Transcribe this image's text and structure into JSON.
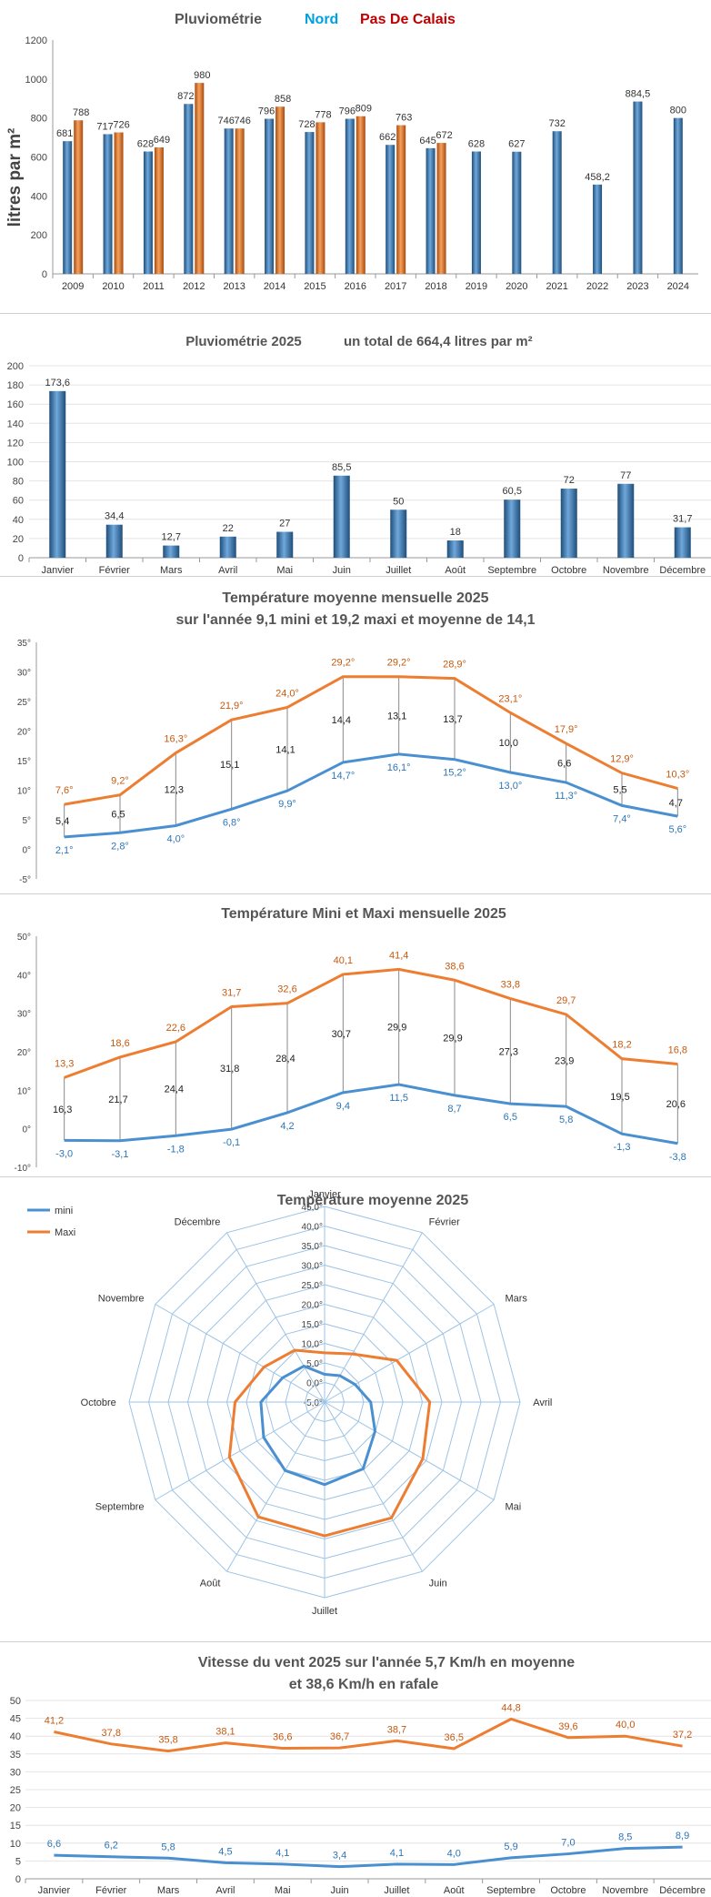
{
  "chart_data": [
    {
      "type": "bar",
      "title_parts": [
        "Pluviométrie",
        "Nord",
        "Pas De Calais"
      ],
      "ylabel": "litres  par  m²",
      "ylim": [
        0,
        1200
      ],
      "yticks": [
        "0",
        "200",
        "400",
        "600",
        "800",
        "1000",
        "1200"
      ],
      "categories": [
        "2009",
        "2010",
        "2011",
        "2012",
        "2013",
        "2014",
        "2015",
        "2016",
        "2017",
        "2018",
        "2019",
        "2020",
        "2021",
        "2022",
        "2023",
        "2024"
      ],
      "series": [
        {
          "name": "Nord",
          "color": "#3b78b8",
          "values": [
            681,
            717,
            628,
            872,
            746,
            796,
            728,
            796,
            662,
            645,
            628,
            627,
            732,
            458.2,
            884.5,
            800
          ],
          "labels": [
            "681",
            "717",
            "628",
            "872",
            "746",
            "796",
            "728",
            "796",
            "662",
            "645",
            "628",
            "627",
            "732",
            "458,2",
            "884,5",
            "800"
          ]
        },
        {
          "name": "Pas De Calais",
          "color": "#e06a1e",
          "values": [
            788,
            726,
            649,
            980,
            746,
            858,
            778,
            809,
            763,
            672,
            null,
            null,
            null,
            null,
            null,
            null
          ],
          "labels": [
            "788",
            "726",
            "649",
            "980",
            "746",
            "858",
            "778",
            "809",
            "763",
            "672",
            "",
            "",
            "",
            "",
            "",
            ""
          ]
        }
      ]
    },
    {
      "type": "bar",
      "title_parts": [
        "Pluviométrie 2025",
        "un total de  664,4   litres par m²"
      ],
      "ylim": [
        0,
        200
      ],
      "yticks": [
        "0",
        "20",
        "40",
        "60",
        "80",
        "100",
        "120",
        "140",
        "160",
        "180",
        "200"
      ],
      "categories": [
        "Janvier",
        "Février",
        "Mars",
        "Avril",
        "Mai",
        "Juin",
        "Juillet",
        "Août",
        "Septembre",
        "Octobre",
        "Novembre",
        "Décembre"
      ],
      "values": [
        173.6,
        34.4,
        12.7,
        22,
        27,
        85.5,
        50,
        18,
        60.5,
        72,
        77,
        31.7
      ],
      "labels": [
        "173,6",
        "34,4",
        "12,7",
        "22",
        "27",
        "85,5",
        "50",
        "18",
        "60,5",
        "72",
        "77",
        "31,7"
      ],
      "color": "#3b78b8"
    },
    {
      "type": "line",
      "title_parts": [
        "Température moyenne mensuelle   2025",
        "sur l'année  9,1 mini  et  19,2 maxi et moyenne de  14,1"
      ],
      "ylim": [
        -5,
        35
      ],
      "yticks": [
        "-5°",
        "0°",
        "5°",
        "10°",
        "15°",
        "20°",
        "25°",
        "30°",
        "35°"
      ],
      "series": [
        {
          "name": "mini",
          "color": "#4a90d0",
          "values": [
            2.1,
            2.8,
            4.0,
            6.8,
            9.9,
            14.7,
            16.1,
            15.2,
            13.0,
            11.3,
            7.4,
            5.6
          ],
          "labels": [
            "2,1°",
            "2,8°",
            "4,0°",
            "6,8°",
            "9,9°",
            "14,7°",
            "16,1°",
            "15,2°",
            "13,0°",
            "11,3°",
            "7,4°",
            "5,6°"
          ]
        },
        {
          "name": "maxi",
          "color": "#ed7d31",
          "values": [
            7.6,
            9.2,
            16.3,
            21.9,
            24.0,
            29.2,
            29.2,
            28.9,
            23.1,
            17.9,
            12.9,
            10.3
          ],
          "labels": [
            "7,6°",
            "9,2°",
            "16,3°",
            "21,9°",
            "24,0°",
            "29,2°",
            "29,2°",
            "28,9°",
            "23,1°",
            "17,9°",
            "12,9°",
            "10,3°"
          ]
        }
      ],
      "diffs": [
        "5,4",
        "6,5",
        "12,3",
        "15,1",
        "14,1",
        "14,4",
        "13,1",
        "13,7",
        "10,0",
        "6,6",
        "5,5",
        "4,7"
      ]
    },
    {
      "type": "line",
      "title_parts": [
        "Température Mini et Maxi mensuelle  2025"
      ],
      "ylim": [
        -10,
        50
      ],
      "yticks": [
        "-10°",
        "0°",
        "10°",
        "20°",
        "30°",
        "40°",
        "50°"
      ],
      "series": [
        {
          "name": "mini",
          "color": "#4a90d0",
          "values": [
            -3.0,
            -3.1,
            -1.8,
            -0.1,
            4.2,
            9.4,
            11.5,
            8.7,
            6.5,
            5.8,
            -1.3,
            -3.8
          ],
          "labels": [
            "-3,0",
            "-3,1",
            "-1,8",
            "-0,1",
            "4,2",
            "9,4",
            "11,5",
            "8,7",
            "6,5",
            "5,8",
            "-1,3",
            "-3,8"
          ]
        },
        {
          "name": "maxi",
          "color": "#ed7d31",
          "values": [
            13.3,
            18.6,
            22.6,
            31.7,
            32.6,
            40.1,
            41.4,
            38.6,
            33.8,
            29.7,
            18.2,
            16.8
          ],
          "labels": [
            "13,3",
            "18,6",
            "22,6",
            "31,7",
            "32,6",
            "40,1",
            "41,4",
            "38,6",
            "33,8",
            "29,7",
            "18,2",
            "16,8"
          ]
        }
      ],
      "diffs": [
        "16,3",
        "21,7",
        "24,4",
        "31,8",
        "28,4",
        "30,7",
        "29,9",
        "29,9",
        "27,3",
        "23,9",
        "19,5",
        "20,6"
      ]
    },
    {
      "type": "radar",
      "title_parts": [
        "Température moyenne    2025"
      ],
      "categories": [
        "Janvier",
        "Février",
        "Mars",
        "Avril",
        "Mai",
        "Juin",
        "Juillet",
        "Août",
        "Septembre",
        "Octobre",
        "Novembre",
        "Décembre"
      ],
      "rlim": [
        -5,
        45
      ],
      "rticks": [
        "-5,0°",
        "0,0°",
        "5,0°",
        "10,0°",
        "15,0°",
        "20,0°",
        "25,0°",
        "30,0°",
        "35,0°",
        "40,0°",
        "45,0°"
      ],
      "legend_position": "top-left",
      "series": [
        {
          "name": "mini",
          "color": "#4a90d0",
          "values": [
            2.1,
            2.8,
            4.0,
            6.8,
            9.9,
            14.7,
            16.1,
            15.2,
            13.0,
            11.3,
            7.4,
            5.6
          ]
        },
        {
          "name": "Maxi",
          "color": "#ed7d31",
          "values": [
            7.6,
            9.2,
            16.3,
            21.9,
            24.0,
            29.2,
            29.2,
            28.9,
            23.1,
            17.9,
            12.9,
            10.3
          ]
        }
      ]
    },
    {
      "type": "line",
      "title_parts": [
        "Vitesse du vent    2025     sur l'année  5,7      Km/h  en moyenne",
        "et  38,6   Km/h    en rafale"
      ],
      "ylim": [
        0,
        50
      ],
      "yticks": [
        "0",
        "5",
        "10",
        "15",
        "20",
        "25",
        "30",
        "35",
        "40",
        "45",
        "50"
      ],
      "categories": [
        "Janvier",
        "Février",
        "Mars",
        "Avril",
        "Mai",
        "Juin",
        "Juillet",
        "Août",
        "Septembre",
        "Octobre",
        "Novembre",
        "Décembre"
      ],
      "series": [
        {
          "name": "rafale",
          "color": "#ed7d31",
          "values": [
            41.2,
            37.8,
            35.8,
            38.1,
            36.6,
            36.7,
            38.7,
            36.5,
            44.8,
            39.6,
            40.0,
            37.2
          ],
          "labels": [
            "41,2",
            "37,8",
            "35,8",
            "38,1",
            "36,6",
            "36,7",
            "38,7",
            "36,5",
            "44,8",
            "39,6",
            "40,0",
            "37,2"
          ]
        },
        {
          "name": "moyenne",
          "color": "#4a90d0",
          "values": [
            6.6,
            6.2,
            5.8,
            4.5,
            4.1,
            3.4,
            4.1,
            4.0,
            5.9,
            7.0,
            8.5,
            8.9
          ],
          "labels": [
            "6,6",
            "6,2",
            "5,8",
            "4,5",
            "4,1",
            "3,4",
            "4,1",
            "4,0",
            "5,9",
            "7,0",
            "8,5",
            "8,9"
          ]
        }
      ]
    }
  ]
}
